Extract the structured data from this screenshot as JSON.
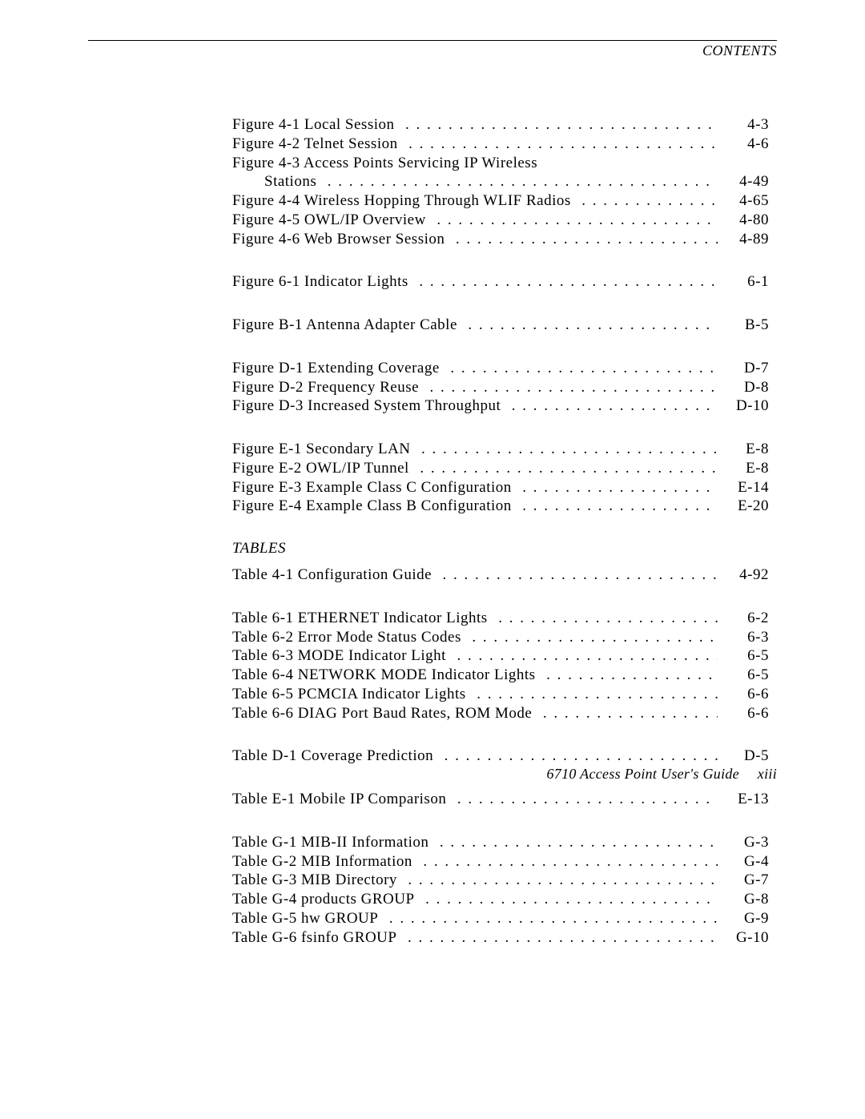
{
  "header": {
    "label": "CONTENTS"
  },
  "footer": {
    "title": "6710 Access Point User's Guide",
    "page": "xiii"
  },
  "figures": {
    "groups": [
      [
        {
          "label": "Figure 4-1  Local Session",
          "page": "4-3"
        },
        {
          "label": "Figure 4-2  Telnet Session",
          "page": "4-6"
        },
        {
          "label": "Figure 4-3  Access Points Servicing IP Wireless",
          "noPage": true
        },
        {
          "cont": true,
          "label": "Stations",
          "page": "4-49"
        },
        {
          "label": "Figure 4-4  Wireless Hopping Through WLIF Radios",
          "page": "4-65"
        },
        {
          "label": "Figure 4-5  OWL/IP Overview",
          "page": "4-80"
        },
        {
          "label": "Figure 4-6  Web Browser Session",
          "page": "4-89"
        }
      ],
      [
        {
          "label": "Figure 6-1  Indicator Lights",
          "page": "6-1"
        }
      ],
      [
        {
          "label": "Figure B-1  Antenna Adapter Cable",
          "page": "B-5"
        }
      ],
      [
        {
          "label": "Figure D-1  Extending Coverage",
          "page": "D-7"
        },
        {
          "label": "Figure D-2  Frequency Reuse",
          "page": "D-8"
        },
        {
          "label": "Figure D-3  Increased System Throughput",
          "page": "D-10"
        }
      ],
      [
        {
          "label": "Figure E-1  Secondary LAN",
          "page": "E-8"
        },
        {
          "label": "Figure E-2  OWL/IP Tunnel",
          "page": "E-8"
        },
        {
          "label": "Figure E-3  Example Class C Configuration",
          "page": "E-14"
        },
        {
          "label": "Figure E-4  Example Class B Configuration",
          "page": "E-20"
        }
      ]
    ]
  },
  "tables": {
    "title": "TABLES",
    "groups": [
      [
        {
          "label": "Table 4-1  Configuration Guide",
          "page": "4-92"
        }
      ],
      [
        {
          "label": "Table 6-1  ETHERNET Indicator Lights",
          "page": "6-2"
        },
        {
          "label": "Table 6-2  Error Mode Status Codes",
          "page": "6-3"
        },
        {
          "label": "Table 6-3  MODE Indicator Light",
          "page": "6-5"
        },
        {
          "label": "Table 6-4  NETWORK MODE Indicator Lights",
          "page": "6-5"
        },
        {
          "label": "Table 6-5  PCMCIA Indicator Lights",
          "page": "6-6"
        },
        {
          "label": "Table 6-6  DIAG Port Baud Rates, ROM Mode",
          "page": "6-6"
        }
      ],
      [
        {
          "label": "Table D-1  Coverage Prediction",
          "page": "D-5"
        }
      ],
      [
        {
          "label": "Table E-1  Mobile IP Comparison",
          "page": "E-13"
        }
      ],
      [
        {
          "label": "Table G-1  MIB-II Information",
          "page": "G-3"
        },
        {
          "label": "Table G-2  MIB Information",
          "page": "G-4"
        },
        {
          "label": "Table G-3  MIB Directory",
          "page": "G-7"
        },
        {
          "label": "Table G-4  products GROUP",
          "page": "G-8"
        },
        {
          "label": "Table G-5  hw GROUP",
          "page": "G-9"
        },
        {
          "label": "Table G-6  fsinfo GROUP",
          "page": "G-10"
        }
      ]
    ]
  }
}
